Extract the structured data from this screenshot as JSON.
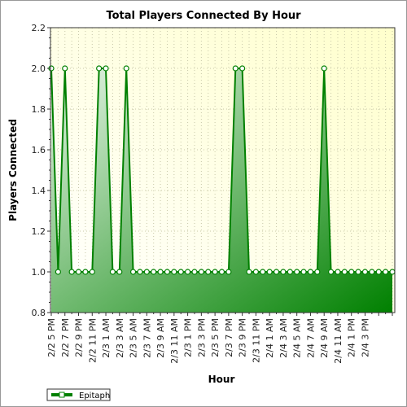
{
  "chart_data": {
    "type": "area",
    "title": "Total Players Connected By Hour",
    "xlabel": "Hour",
    "ylabel": "Players Connected",
    "ylim": [
      0.8,
      2.2
    ],
    "yticks": [
      "0.8",
      "1.0",
      "1.2",
      "1.4",
      "1.6",
      "1.8",
      "2.0",
      "2.2"
    ],
    "grid": true,
    "legend_position": "bottom-left",
    "xtick_labels": [
      "2/2 5 PM",
      "2/2 7 PM",
      "2/2 9 PM",
      "2/2 11 PM",
      "2/3 1 AM",
      "2/3 3 AM",
      "2/3 5 AM",
      "2/3 7 AM",
      "2/3 9 AM",
      "2/3 11 AM",
      "2/3 1 PM",
      "2/3 3 PM",
      "2/3 5 PM",
      "2/3 7 PM",
      "2/3 9 PM",
      "2/3 11 PM",
      "2/4 1 AM",
      "2/4 3 AM",
      "2/4 5 AM",
      "2/4 7 AM",
      "2/4 9 AM",
      "2/4 11 AM",
      "2/4 1 PM",
      "2/4 3 PM"
    ],
    "series": [
      {
        "name": "Epitaph",
        "color": "#008000",
        "values": [
          2,
          1,
          2,
          1,
          1,
          1,
          1,
          2,
          2,
          1,
          1,
          2,
          1,
          1,
          1,
          1,
          1,
          1,
          1,
          1,
          1,
          1,
          1,
          1,
          1,
          1,
          1,
          2,
          2,
          1,
          1,
          1,
          1,
          1,
          1,
          1,
          1,
          1,
          1,
          1,
          2,
          1,
          1,
          1,
          1,
          1,
          1,
          1,
          1,
          1,
          1
        ]
      }
    ]
  }
}
